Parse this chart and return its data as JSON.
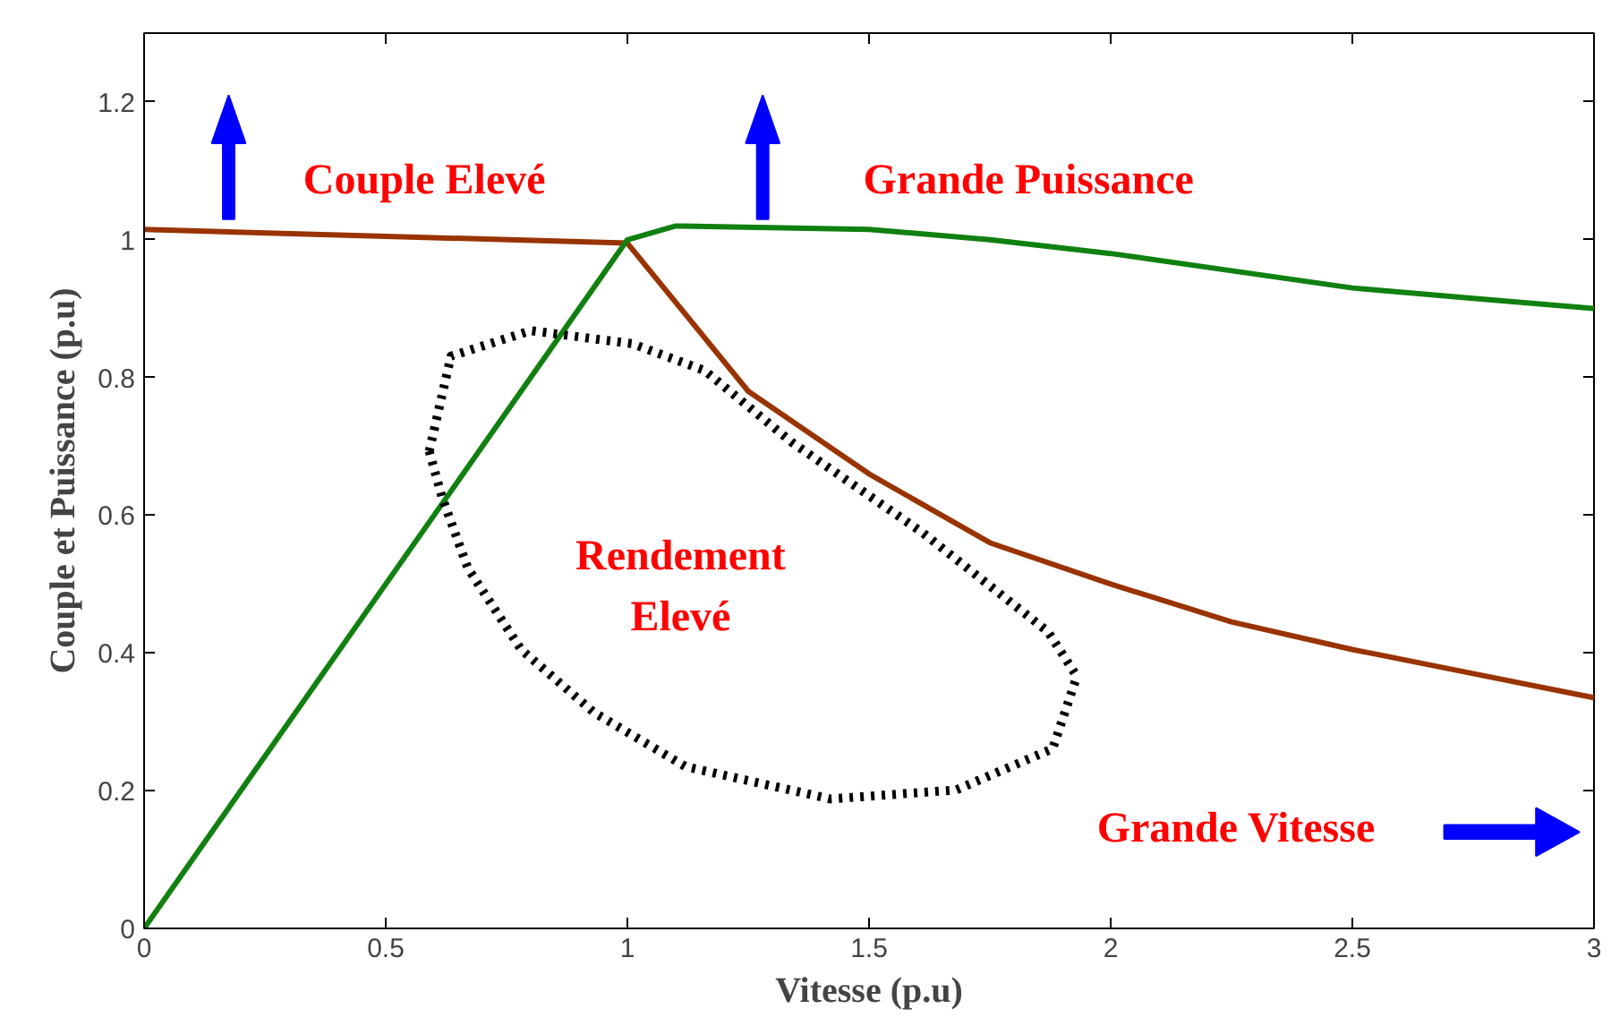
{
  "chart_data": {
    "type": "line",
    "xlabel": "Vitesse (p.u)",
    "ylabel": "Couple et Puissance (p.u)",
    "xlim": [
      0,
      3
    ],
    "ylim": [
      0,
      1.3
    ],
    "xticks": [
      0,
      0.5,
      1,
      1.5,
      2,
      2.5,
      3
    ],
    "yticks": [
      0,
      0.2,
      0.4,
      0.6,
      0.8,
      1,
      1.2
    ],
    "grid": false,
    "marker": "none",
    "series": [
      {
        "color": "#993300",
        "line_style": "solid",
        "x": [
          0,
          0.5,
          1,
          1.25,
          1.5,
          1.75,
          2,
          2.25,
          2.5,
          2.75,
          3
        ],
        "values": [
          1.015,
          1.005,
          0.995,
          0.78,
          0.66,
          0.56,
          0.5,
          0.445,
          0.405,
          0.37,
          0.335
        ]
      },
      {
        "color": "#108010",
        "line_style": "solid",
        "x": [
          0,
          1,
          1.1,
          1.5,
          1.75,
          2,
          2.25,
          2.5,
          2.75,
          3
        ],
        "values": [
          0,
          1.0,
          1.02,
          1.015,
          1.0,
          0.98,
          0.955,
          0.93,
          0.915,
          0.9
        ]
      },
      {
        "color": "#000000",
        "line_style": "dotted",
        "x": [
          0.59,
          0.635,
          0.8,
          1.01,
          1.16,
          1.34,
          1.61,
          1.87,
          1.93
        ],
        "values": [
          0.693,
          0.831,
          0.868,
          0.849,
          0.81,
          0.706,
          0.575,
          0.431,
          0.366
        ]
      },
      {
        "color": "#000000",
        "line_style": "dotted",
        "x": [
          0.59,
          0.616,
          0.67,
          0.78,
          0.93,
          1.12,
          1.42,
          1.68,
          1.88,
          1.93
        ],
        "values": [
          0.693,
          0.627,
          0.523,
          0.405,
          0.314,
          0.235,
          0.188,
          0.201,
          0.261,
          0.366
        ]
      }
    ],
    "annotations": [
      "Couple Elevé",
      "Grande Puissance",
      "Rendement Elevé",
      "Grande Vitesse"
    ]
  }
}
